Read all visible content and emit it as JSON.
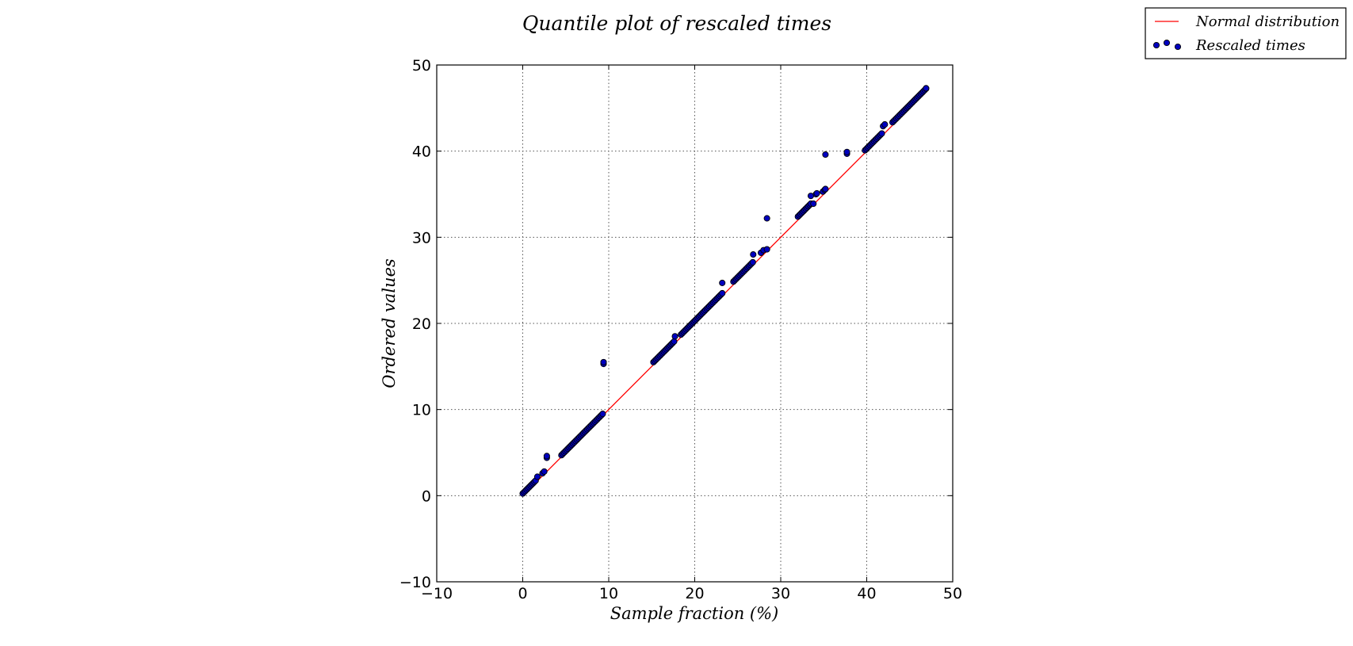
{
  "chart_data": {
    "type": "scatter",
    "title": "Quantile plot of rescaled times",
    "xlabel": "Sample fraction (%)",
    "ylabel": "Ordered values",
    "xlim": [
      -10,
      50
    ],
    "ylim": [
      -10,
      50
    ],
    "x_ticks": [
      "−10",
      "0",
      "10",
      "20",
      "30",
      "40",
      "50"
    ],
    "y_ticks": [
      "−10",
      "0",
      "10",
      "20",
      "30",
      "40",
      "50"
    ],
    "x_tick_values": [
      -10,
      0,
      10,
      20,
      30,
      40,
      50
    ],
    "y_tick_values": [
      -10,
      0,
      10,
      20,
      30,
      40,
      50
    ],
    "grid": true,
    "legend_position": "top-right, outside plot",
    "colors": {
      "line": "#ff0000",
      "marker_fill": "#0000bf",
      "marker_edge": "#000000",
      "grid": "#555555"
    },
    "series": [
      {
        "name": "Normal distribution",
        "type": "line",
        "x": [
          0,
          47
        ],
        "y": [
          0,
          47
        ]
      },
      {
        "name": "Rescaled times",
        "type": "scatter",
        "segments": [
          {
            "x_start": 0.0,
            "x_end": 1.5,
            "offset": 0.25
          },
          {
            "x_start": 4.5,
            "x_end": 9.4,
            "offset": 0.2
          },
          {
            "x_start": 15.2,
            "x_end": 17.6,
            "offset": 0.3
          },
          {
            "x_start": 18.4,
            "x_end": 23.2,
            "offset": 0.3
          },
          {
            "x_start": 24.5,
            "x_end": 26.8,
            "offset": 0.35
          },
          {
            "x_start": 32.0,
            "x_end": 33.5,
            "offset": 0.4
          },
          {
            "x_start": 39.8,
            "x_end": 41.8,
            "offset": 0.3
          },
          {
            "x_start": 43.0,
            "x_end": 47.0,
            "offset": 0.35
          }
        ],
        "extra_points": [
          {
            "x": 1.7,
            "y": 2.2
          },
          {
            "x": 2.3,
            "y": 2.6
          },
          {
            "x": 2.5,
            "y": 2.8
          },
          {
            "x": 2.8,
            "y": 4.4
          },
          {
            "x": 2.8,
            "y": 4.6
          },
          {
            "x": 9.4,
            "y": 15.3
          },
          {
            "x": 9.4,
            "y": 15.5
          },
          {
            "x": 17.7,
            "y": 18.5
          },
          {
            "x": 23.2,
            "y": 24.7
          },
          {
            "x": 26.8,
            "y": 28.0
          },
          {
            "x": 27.7,
            "y": 28.2
          },
          {
            "x": 28.0,
            "y": 28.5
          },
          {
            "x": 28.4,
            "y": 28.6
          },
          {
            "x": 28.4,
            "y": 32.2
          },
          {
            "x": 33.5,
            "y": 34.8
          },
          {
            "x": 33.8,
            "y": 33.9
          },
          {
            "x": 34.1,
            "y": 35.0
          },
          {
            "x": 34.2,
            "y": 35.1
          },
          {
            "x": 34.9,
            "y": 35.3
          },
          {
            "x": 35.1,
            "y": 35.5
          },
          {
            "x": 35.2,
            "y": 35.6
          },
          {
            "x": 35.2,
            "y": 39.6
          },
          {
            "x": 37.7,
            "y": 39.7
          },
          {
            "x": 37.7,
            "y": 39.9
          },
          {
            "x": 41.9,
            "y": 42.9
          },
          {
            "x": 42.1,
            "y": 43.1
          },
          {
            "x": 46.9,
            "y": 47.3
          }
        ]
      }
    ]
  }
}
